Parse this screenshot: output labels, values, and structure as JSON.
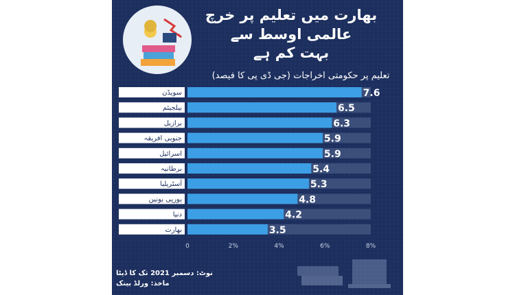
{
  "header": {
    "title_lines": [
      "بھارت میں تعلیم پر خرچ",
      "عالمی اوسط سے",
      "بہت کم ہے"
    ],
    "subtitle": "تعلیم پر حکومتی اخراجات (جی ڈی پی کا فیصد)"
  },
  "footer": {
    "note": "نوٹ: دسمبر 2021 تک کا ڈیٹا",
    "source": "ماخذ: ورلڈ بینک"
  },
  "colors": {
    "bar": "#3c9fe6",
    "track": "#3c4f7a",
    "label_bg": "#ffffff",
    "background": "#1c2f5e"
  },
  "chart_data": {
    "type": "bar",
    "orientation": "horizontal",
    "categories": [
      "سویڈن",
      "بیلجیئم",
      "برازیل",
      "جنوبی افریقہ",
      "اسرائیل",
      "برطانیہ",
      "آسٹریلیا",
      "یورپی یونین",
      "دنیا",
      "بھارت"
    ],
    "values": [
      7.6,
      6.5,
      6.3,
      5.9,
      5.9,
      5.4,
      5.3,
      4.8,
      4.2,
      3.5
    ],
    "value_labels": [
      "7.6",
      "6.5",
      "6.3",
      "5.9",
      "5.9",
      "5.4",
      "5.3",
      "4.8",
      "4.2",
      "3.5"
    ],
    "x_ticks": [
      "0",
      "2%",
      "4%",
      "6%",
      "8%"
    ],
    "xlim": [
      0,
      8
    ],
    "grid": false,
    "legend": "none"
  }
}
